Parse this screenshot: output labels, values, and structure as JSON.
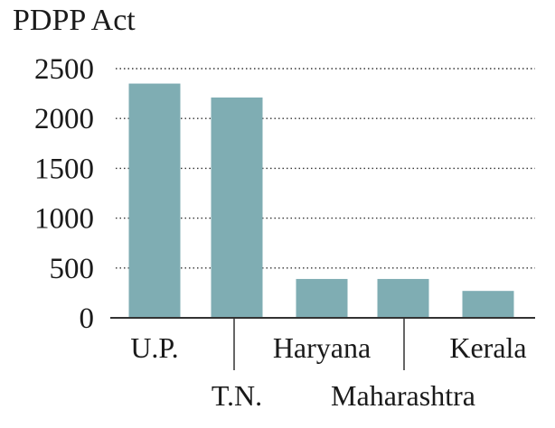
{
  "chart_data": {
    "type": "bar",
    "title": "PDPP Act",
    "categories": [
      "U.P.",
      "T.N.",
      "Haryana",
      "Maharashtra",
      "Kerala"
    ],
    "values": [
      2350,
      2210,
      390,
      390,
      270
    ],
    "ylim": [
      0,
      2500
    ],
    "yticks": [
      0,
      500,
      1000,
      1500,
      2000,
      2500
    ],
    "grid": true,
    "bar_color": "#7fadb3",
    "text_color": "#1a1a1a"
  }
}
